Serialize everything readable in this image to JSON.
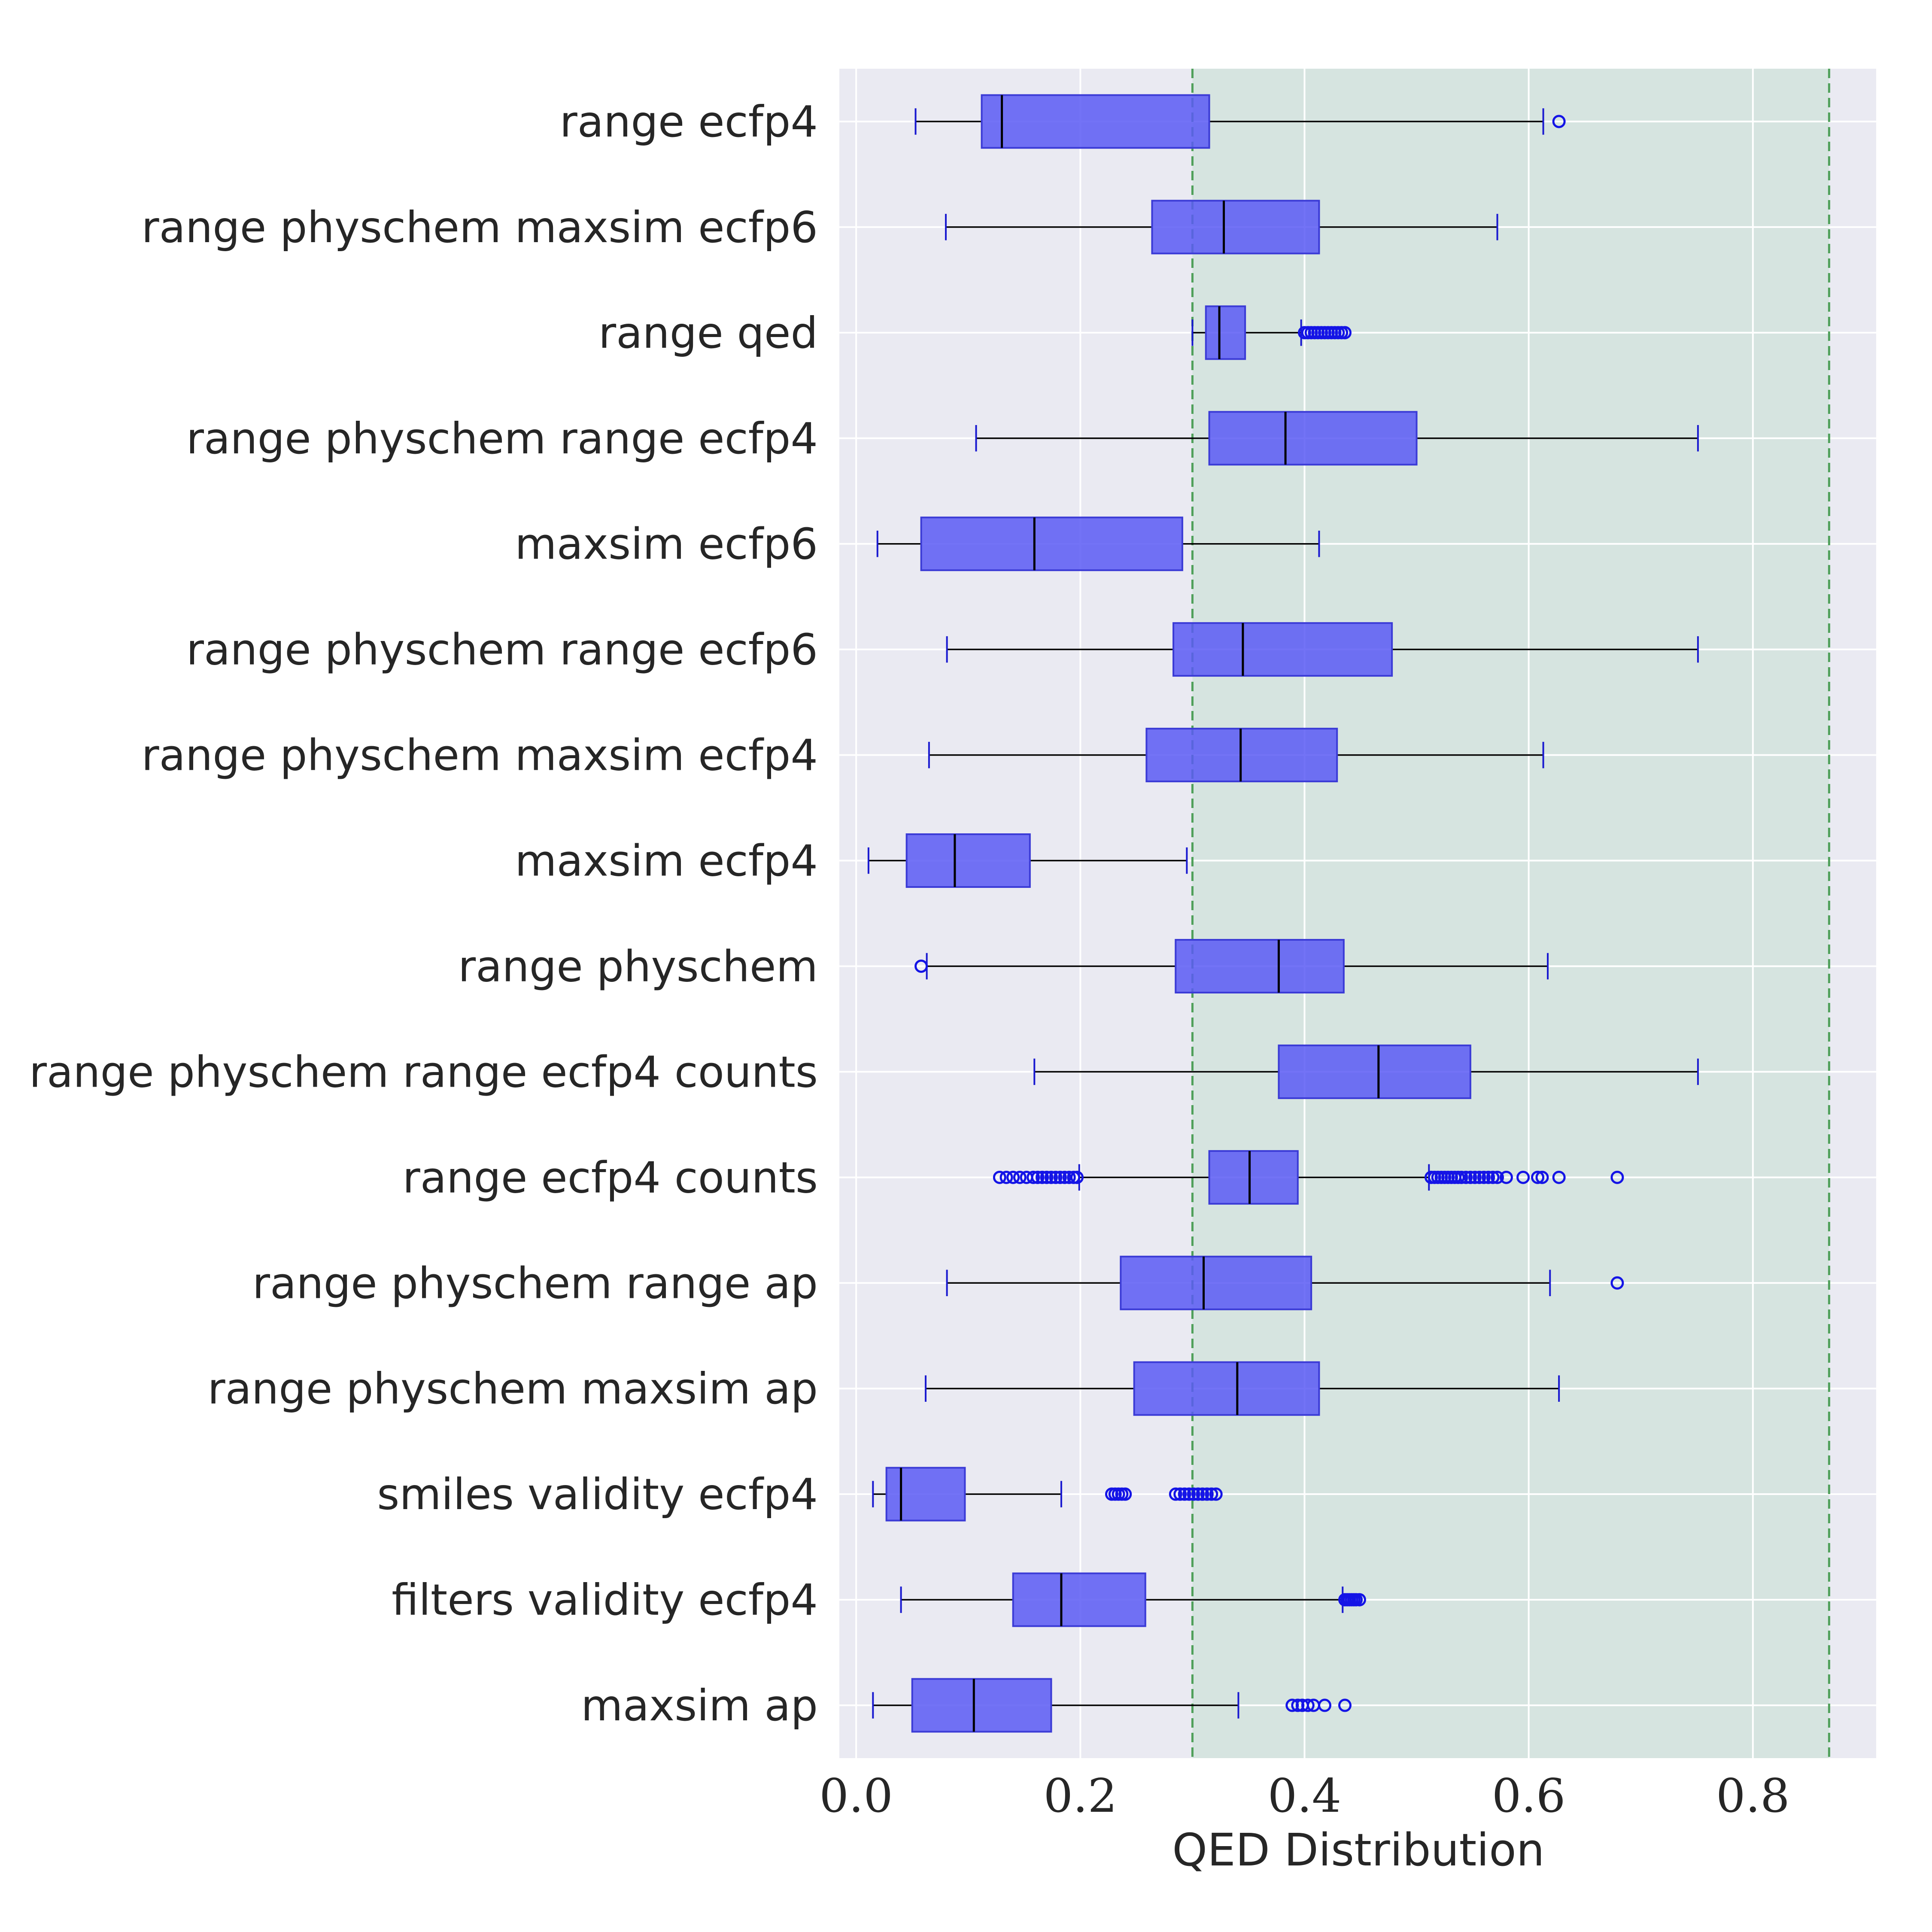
{
  "chart_data": {
    "type": "box",
    "orientation": "horizontal",
    "xlabel": "QED Distribution",
    "ylabel": "",
    "xlim": [
      -0.015,
      0.91
    ],
    "xticks": [
      0.0,
      0.2,
      0.4,
      0.6,
      0.8
    ],
    "xtick_labels": [
      "0.0",
      "0.2",
      "0.4",
      "0.6",
      "0.8"
    ],
    "grid": true,
    "reference_lines": [
      0.3,
      0.868
    ],
    "shaded_band": [
      0.3,
      0.868
    ],
    "colors": {
      "box_fill": "#5b5bf5",
      "box_edge": "#3b3bd6",
      "whisker": "#000000",
      "cap": "#1a1ad0",
      "median": "#000000",
      "flier": "#1414e6",
      "plot_bg": "#eaeaf2",
      "band": "#d6e4e0",
      "ref_line": "#4fa05a",
      "grid": "#ffffff"
    },
    "series": [
      {
        "label": "range ecfp4",
        "whislo": 0.053,
        "q1": 0.112,
        "med": 0.13,
        "q3": 0.315,
        "whishi": 0.613,
        "fliers": [
          0.627
        ]
      },
      {
        "label": "range physchem maxsim ecfp6",
        "whislo": 0.08,
        "q1": 0.264,
        "med": 0.328,
        "q3": 0.413,
        "whishi": 0.572,
        "fliers": []
      },
      {
        "label": "range qed",
        "whislo": 0.3,
        "q1": 0.312,
        "med": 0.324,
        "q3": 0.347,
        "whishi": 0.397,
        "fliers": [
          0.4,
          0.403,
          0.406,
          0.409,
          0.412,
          0.415,
          0.418,
          0.421,
          0.424,
          0.427,
          0.43,
          0.433,
          0.436
        ]
      },
      {
        "label": "range physchem range ecfp4",
        "whislo": 0.107,
        "q1": 0.315,
        "med": 0.383,
        "q3": 0.5,
        "whishi": 0.751,
        "fliers": []
      },
      {
        "label": "maxsim ecfp6",
        "whislo": 0.019,
        "q1": 0.058,
        "med": 0.159,
        "q3": 0.291,
        "whishi": 0.413,
        "fliers": []
      },
      {
        "label": "range physchem range ecfp6",
        "whislo": 0.081,
        "q1": 0.283,
        "med": 0.345,
        "q3": 0.478,
        "whishi": 0.751,
        "fliers": []
      },
      {
        "label": "range physchem maxsim ecfp4",
        "whislo": 0.065,
        "q1": 0.259,
        "med": 0.343,
        "q3": 0.429,
        "whishi": 0.613,
        "fliers": []
      },
      {
        "label": "maxsim ecfp4",
        "whislo": 0.011,
        "q1": 0.045,
        "med": 0.088,
        "q3": 0.155,
        "whishi": 0.295,
        "fliers": []
      },
      {
        "label": "range physchem",
        "whislo": 0.063,
        "q1": 0.285,
        "med": 0.377,
        "q3": 0.435,
        "whishi": 0.617,
        "fliers": [
          0.058
        ]
      },
      {
        "label": "range physchem range ecfp4 counts",
        "whislo": 0.159,
        "q1": 0.377,
        "med": 0.466,
        "q3": 0.548,
        "whishi": 0.751,
        "fliers": []
      },
      {
        "label": "range ecfp4 counts",
        "whislo": 0.199,
        "q1": 0.315,
        "med": 0.351,
        "q3": 0.394,
        "whishi": 0.511,
        "fliers": [
          0.128,
          0.134,
          0.14,
          0.146,
          0.152,
          0.158,
          0.162,
          0.166,
          0.17,
          0.174,
          0.178,
          0.182,
          0.186,
          0.19,
          0.194,
          0.197,
          0.513,
          0.516,
          0.519,
          0.522,
          0.525,
          0.528,
          0.531,
          0.534,
          0.537,
          0.54,
          0.544,
          0.548,
          0.552,
          0.556,
          0.56,
          0.564,
          0.568,
          0.572,
          0.58,
          0.595,
          0.608,
          0.612,
          0.627,
          0.679
        ]
      },
      {
        "label": "range physchem range ap",
        "whislo": 0.081,
        "q1": 0.236,
        "med": 0.31,
        "q3": 0.406,
        "whishi": 0.619,
        "fliers": [
          0.679
        ]
      },
      {
        "label": "range physchem maxsim ap",
        "whislo": 0.062,
        "q1": 0.248,
        "med": 0.34,
        "q3": 0.413,
        "whishi": 0.627,
        "fliers": []
      },
      {
        "label": "smiles validity ecfp4",
        "whislo": 0.015,
        "q1": 0.027,
        "med": 0.04,
        "q3": 0.097,
        "whishi": 0.183,
        "fliers": [
          0.228,
          0.231,
          0.234,
          0.237,
          0.24,
          0.285,
          0.289,
          0.293,
          0.297,
          0.301,
          0.305,
          0.309,
          0.313,
          0.317,
          0.321
        ]
      },
      {
        "label": "filters validity ecfp4",
        "whislo": 0.04,
        "q1": 0.14,
        "med": 0.183,
        "q3": 0.258,
        "whishi": 0.434,
        "fliers": [
          0.436,
          0.438,
          0.44,
          0.442,
          0.444,
          0.446,
          0.449
        ]
      },
      {
        "label": "maxsim ap",
        "whislo": 0.015,
        "q1": 0.05,
        "med": 0.105,
        "q3": 0.174,
        "whishi": 0.341,
        "fliers": [
          0.389,
          0.394,
          0.398,
          0.403,
          0.408,
          0.418,
          0.436
        ]
      }
    ]
  }
}
